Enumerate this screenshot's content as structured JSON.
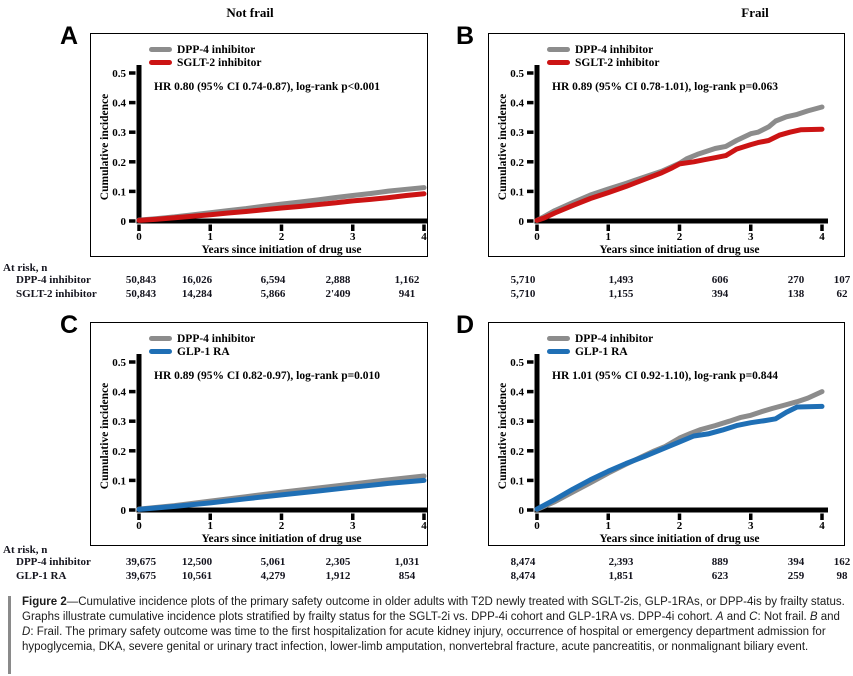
{
  "figure": {
    "column_headers": {
      "left": "Not frail",
      "right": "Frail"
    },
    "at_risk_label": "At risk, n",
    "caption_segments": [
      {
        "text": "Figure 2",
        "bold": true
      },
      {
        "text": "—Cumulative incidence plots of the primary safety outcome in older adults with T2D newly treated with SGLT-2is, GLP-1RAs, or DPP-4is by frailty status. Graphs illustrate cumulative incidence plots stratified by frailty status for the SGLT-2i vs. DPP-4i cohort and GLP-1RA vs. DPP-4i cohort. "
      },
      {
        "text": "A",
        "italic": true
      },
      {
        "text": " and "
      },
      {
        "text": "C",
        "italic": true
      },
      {
        "text": ": Not frail. "
      },
      {
        "text": "B",
        "italic": true
      },
      {
        "text": " and "
      },
      {
        "text": "D",
        "italic": true
      },
      {
        "text": ": Frail. The primary safety outcome was time to the first hospitalization for acute kidney injury, occurrence of hospital or emergency department admission for hypoglycemia, DKA, severe genital or urinary tract infection, lower-limb amputation, nonvertebral fracture, acute pancreatitis, or nonmalignant biliary event."
      }
    ]
  },
  "chart_data": [
    {
      "type": "line",
      "panel_letter": "A",
      "frailty_group": "Not frail",
      "annotation": "HR 0.80 (95% CI 0.74-0.87), log-rank p<0.001",
      "xlabel": "Years since initiation of drug use",
      "ylabel": "Cumulative incidence",
      "xlim": [
        0,
        4
      ],
      "ylim": [
        0,
        0.5
      ],
      "xticks": [
        "0",
        "1",
        "2",
        "3",
        "4"
      ],
      "yticks": [
        "0",
        "0.1",
        "0.2",
        "0.3",
        "0.4",
        "0.5"
      ],
      "legend_position": "top-left-inside",
      "series": [
        {
          "name": "DPP-4 inhibitor",
          "color": "#8C8C8C",
          "x": [
            0,
            0.25,
            0.5,
            0.75,
            1,
            1.25,
            1.5,
            1.75,
            2,
            2.25,
            2.5,
            2.75,
            3,
            3.25,
            3.5,
            3.75,
            4
          ],
          "y": [
            0.003,
            0.008,
            0.014,
            0.021,
            0.028,
            0.035,
            0.042,
            0.05,
            0.057,
            0.064,
            0.071,
            0.079,
            0.086,
            0.093,
            0.101,
            0.107,
            0.113
          ]
        },
        {
          "name": "SGLT-2 inhibitor",
          "color": "#CC1414",
          "x": [
            0,
            0.25,
            0.5,
            0.75,
            1,
            1.25,
            1.5,
            1.75,
            2,
            2.25,
            2.5,
            2.75,
            3,
            3.25,
            3.5,
            3.75,
            4
          ],
          "y": [
            0.002,
            0.006,
            0.011,
            0.016,
            0.021,
            0.027,
            0.032,
            0.038,
            0.044,
            0.049,
            0.055,
            0.061,
            0.068,
            0.073,
            0.079,
            0.086,
            0.092
          ]
        }
      ],
      "at_risk": {
        "row_labels": [
          "DPP-4 inhibitor",
          "SGLT-2 inhibitor"
        ],
        "values": [
          [
            "50,843",
            "16,026",
            "6,594",
            "2,888",
            "1,162"
          ],
          [
            "50,843",
            "14,284",
            "5,866",
            "2'409",
            "941"
          ]
        ]
      }
    },
    {
      "type": "line",
      "panel_letter": "B",
      "frailty_group": "Frail",
      "annotation": "HR 0.89 (95% CI 0.78-1.01), log-rank p=0.063",
      "xlabel": "Years since initiation of drug use",
      "ylabel": "Cumulative incidence",
      "xlim": [
        0,
        4
      ],
      "ylim": [
        0,
        0.5
      ],
      "xticks": [
        "0",
        "1",
        "2",
        "3",
        "4"
      ],
      "yticks": [
        "0",
        "0.1",
        "0.2",
        "0.3",
        "0.4",
        "0.5"
      ],
      "legend_position": "top-left-inside",
      "series": [
        {
          "name": "DPP-4 inhibitor",
          "color": "#8C8C8C",
          "x": [
            0,
            0.1,
            0.25,
            0.5,
            0.75,
            1,
            1.25,
            1.5,
            1.75,
            2,
            2.1,
            2.25,
            2.5,
            2.65,
            2.8,
            3,
            3.1,
            3.25,
            3.35,
            3.5,
            3.65,
            3.8,
            4
          ],
          "y": [
            0.002,
            0.015,
            0.035,
            0.062,
            0.088,
            0.108,
            0.127,
            0.148,
            0.168,
            0.195,
            0.21,
            0.225,
            0.245,
            0.252,
            0.272,
            0.295,
            0.3,
            0.318,
            0.338,
            0.352,
            0.36,
            0.372,
            0.385
          ]
        },
        {
          "name": "SGLT-2 inhibitor",
          "color": "#CC1414",
          "x": [
            0,
            0.1,
            0.25,
            0.5,
            0.75,
            1,
            1.25,
            1.5,
            1.75,
            1.9,
            2,
            2.2,
            2.35,
            2.5,
            2.65,
            2.8,
            3,
            3.1,
            3.25,
            3.4,
            3.55,
            3.7,
            4
          ],
          "y": [
            0.002,
            0.01,
            0.027,
            0.052,
            0.076,
            0.096,
            0.117,
            0.14,
            0.163,
            0.18,
            0.193,
            0.2,
            0.207,
            0.214,
            0.221,
            0.243,
            0.258,
            0.265,
            0.272,
            0.29,
            0.3,
            0.308,
            0.31
          ]
        }
      ],
      "at_risk": {
        "row_labels": [
          "DPP-4 inhibitor",
          "SGLT-2 inhibitor"
        ],
        "values": [
          [
            "5,710",
            "1,493",
            "606",
            "270",
            "107"
          ],
          [
            "5,710",
            "1,155",
            "394",
            "138",
            "62"
          ]
        ]
      }
    },
    {
      "type": "line",
      "panel_letter": "C",
      "frailty_group": "Not frail",
      "annotation": "HR 0.89 (95% CI 0.82-0.97), log-rank p=0.010",
      "xlabel": "Years since initiation of drug use",
      "ylabel": "Cumulative incidence",
      "xlim": [
        0,
        4
      ],
      "ylim": [
        0,
        0.5
      ],
      "xticks": [
        "0",
        "1",
        "2",
        "3",
        "4"
      ],
      "yticks": [
        "0",
        "0.1",
        "0.2",
        "0.3",
        "0.4",
        "0.5"
      ],
      "legend_position": "top-left-inside",
      "series": [
        {
          "name": "DPP-4 inhibitor",
          "color": "#8C8C8C",
          "x": [
            0,
            0.5,
            1,
            1.5,
            2,
            2.5,
            3,
            3.5,
            4
          ],
          "y": [
            0.003,
            0.015,
            0.03,
            0.045,
            0.06,
            0.074,
            0.088,
            0.102,
            0.115
          ]
        },
        {
          "name": "GLP-1 RA",
          "color": "#1F6FB5",
          "x": [
            0,
            0.5,
            1,
            1.5,
            2,
            2.5,
            3,
            3.5,
            4
          ],
          "y": [
            0.002,
            0.012,
            0.024,
            0.038,
            0.051,
            0.064,
            0.077,
            0.09,
            0.1
          ]
        }
      ],
      "at_risk": {
        "row_labels": [
          "DPP-4 inhibitor",
          "GLP-1 RA"
        ],
        "values": [
          [
            "39,675",
            "12,500",
            "5,061",
            "2,305",
            "1,031"
          ],
          [
            "39,675",
            "10,561",
            "4,279",
            "1,912",
            "854"
          ]
        ]
      }
    },
    {
      "type": "line",
      "panel_letter": "D",
      "frailty_group": "Frail",
      "annotation": "HR 1.01 (95% CI 0.92-1.10), log-rank p=0.844",
      "xlabel": "Years since initiation of drug use",
      "ylabel": "Cumulative incidence",
      "xlim": [
        0,
        4
      ],
      "ylim": [
        0,
        0.5
      ],
      "xticks": [
        "0",
        "1",
        "2",
        "3",
        "4"
      ],
      "yticks": [
        "0",
        "0.1",
        "0.2",
        "0.3",
        "0.4",
        "0.5"
      ],
      "legend_position": "top-left-inside",
      "series": [
        {
          "name": "DPP-4 inhibitor",
          "color": "#8C8C8C",
          "x": [
            0,
            0.25,
            0.5,
            0.75,
            1,
            1.25,
            1.5,
            1.65,
            1.8,
            2,
            2.15,
            2.3,
            2.5,
            2.7,
            2.85,
            3,
            3.15,
            3.3,
            3.5,
            3.65,
            3.8,
            4
          ],
          "y": [
            0.002,
            0.028,
            0.06,
            0.092,
            0.125,
            0.155,
            0.183,
            0.2,
            0.215,
            0.243,
            0.258,
            0.272,
            0.285,
            0.3,
            0.312,
            0.32,
            0.332,
            0.343,
            0.356,
            0.366,
            0.378,
            0.4
          ]
        },
        {
          "name": "GLP-1 RA",
          "color": "#1F6FB5",
          "x": [
            0,
            0.25,
            0.5,
            0.75,
            1,
            1.25,
            1.5,
            1.75,
            2,
            2.2,
            2.4,
            2.6,
            2.8,
            3,
            3.2,
            3.35,
            3.5,
            3.65,
            4
          ],
          "y": [
            0.003,
            0.035,
            0.07,
            0.102,
            0.131,
            0.157,
            0.18,
            0.205,
            0.23,
            0.25,
            0.257,
            0.27,
            0.285,
            0.295,
            0.302,
            0.308,
            0.33,
            0.348,
            0.35
          ]
        }
      ],
      "at_risk": {
        "row_labels": [
          "DPP-4 inhibitor",
          "GLP-1 RA"
        ],
        "values": [
          [
            "8,474",
            "2,393",
            "889",
            "394",
            "162"
          ],
          [
            "8,474",
            "1,851",
            "623",
            "259",
            "98"
          ]
        ]
      }
    }
  ]
}
